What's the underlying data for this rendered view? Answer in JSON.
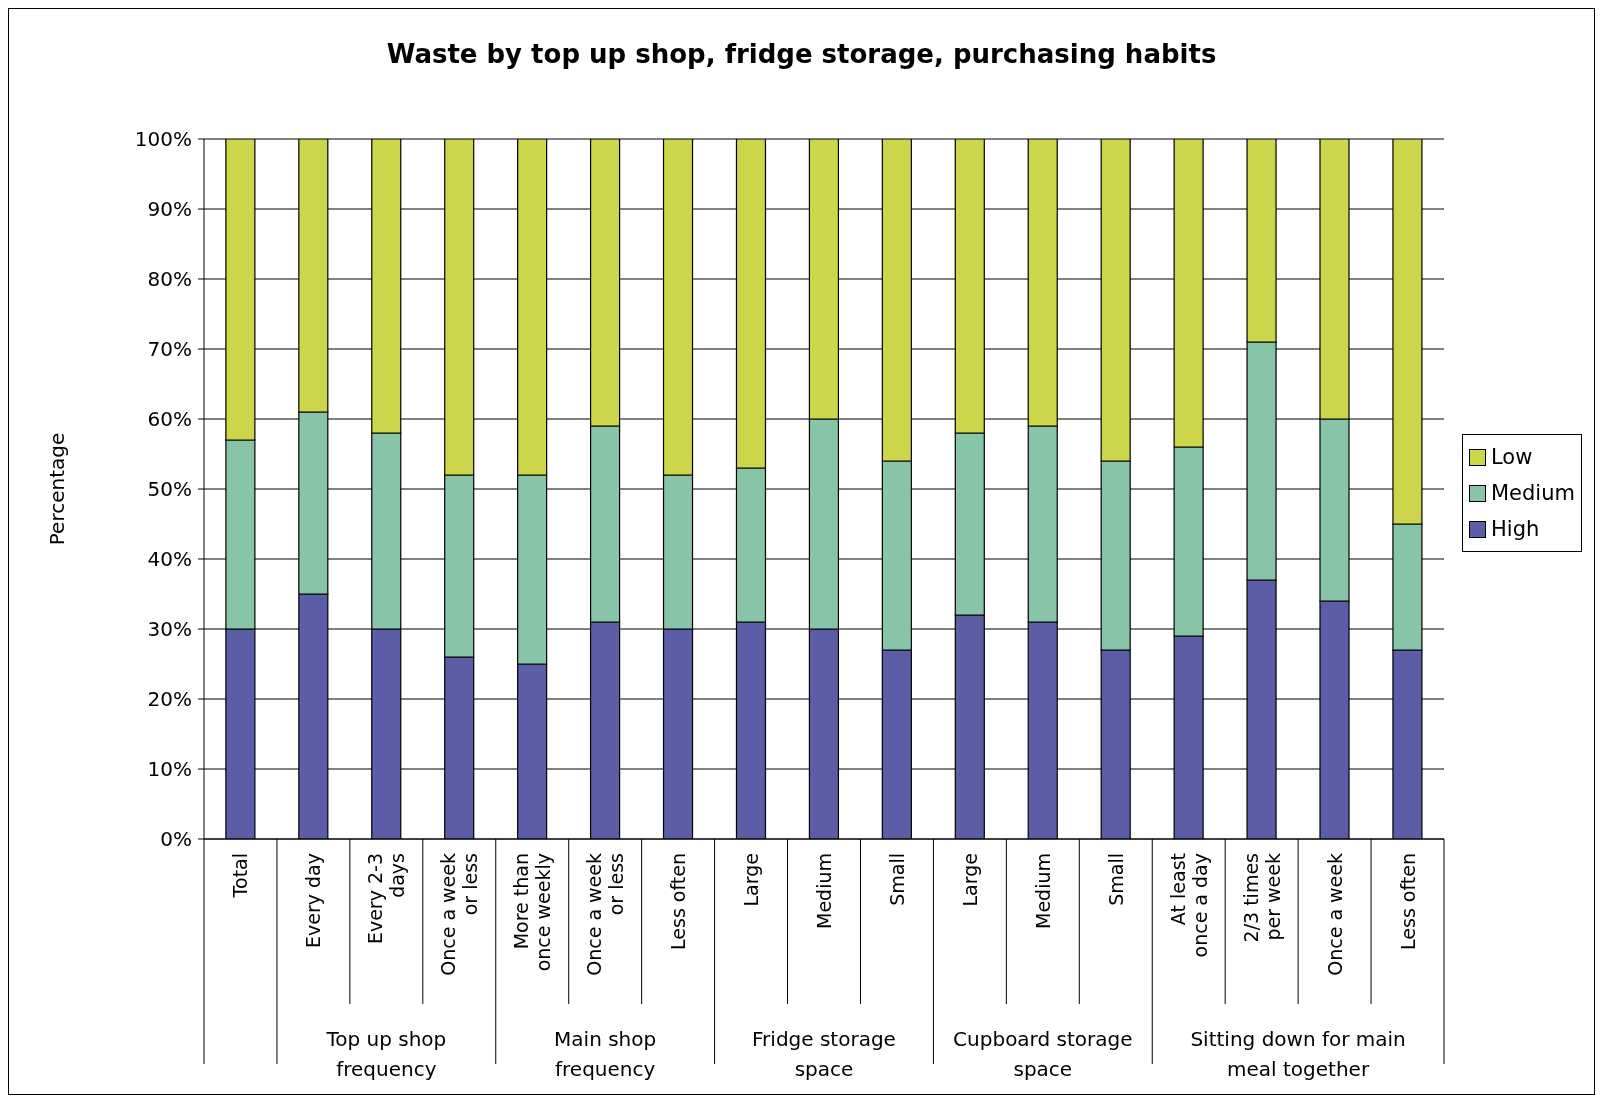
{
  "chart_data": {
    "type": "bar",
    "stacked": true,
    "title": "Waste by top up shop, fridge storage, purchasing habits",
    "ylabel": "Percentage",
    "categories": [
      "Total",
      "Every day",
      "Every 2-3 days",
      "Once a week or less",
      "More than once weekly",
      "Once a week or less",
      "Less often",
      "Large",
      "Medium",
      "Small",
      "Large",
      "Medium",
      "Small",
      "At least once a day",
      "2/3 times per week",
      "Once a week",
      "Less often"
    ],
    "series": [
      {
        "name": "High",
        "color": "#5b5ea6",
        "values": [
          30,
          35,
          30,
          26,
          25,
          31,
          30,
          31,
          30,
          27,
          32,
          31,
          27,
          29,
          37,
          34,
          27
        ]
      },
      {
        "name": "Medium",
        "color": "#88c4a8",
        "values": [
          27,
          26,
          28,
          26,
          27,
          28,
          22,
          22,
          30,
          27,
          26,
          28,
          27,
          27,
          34,
          26,
          18
        ]
      },
      {
        "name": "Low",
        "color": "#cdd64a",
        "values": [
          43,
          39,
          42,
          48,
          48,
          41,
          48,
          47,
          40,
          46,
          42,
          41,
          46,
          44,
          29,
          40,
          55
        ]
      }
    ],
    "ylim": [
      0,
      100
    ],
    "yticks": [
      {
        "value": 0,
        "label": "0%"
      },
      {
        "value": 10,
        "label": "10%"
      },
      {
        "value": 20,
        "label": "20%"
      },
      {
        "value": 30,
        "label": "30%"
      },
      {
        "value": 40,
        "label": "40%"
      },
      {
        "value": 50,
        "label": "50%"
      },
      {
        "value": 60,
        "label": "60%"
      },
      {
        "value": 70,
        "label": "70%"
      },
      {
        "value": 80,
        "label": "80%"
      },
      {
        "value": 90,
        "label": "90%"
      },
      {
        "value": 100,
        "label": "100%"
      }
    ],
    "grid": "y",
    "legend": "right",
    "annotations": [
      "Top up shop frequency",
      "Main shop frequency",
      "Fridge storage space",
      "Cupboard storage space",
      "Sitting down for main meal together"
    ]
  }
}
